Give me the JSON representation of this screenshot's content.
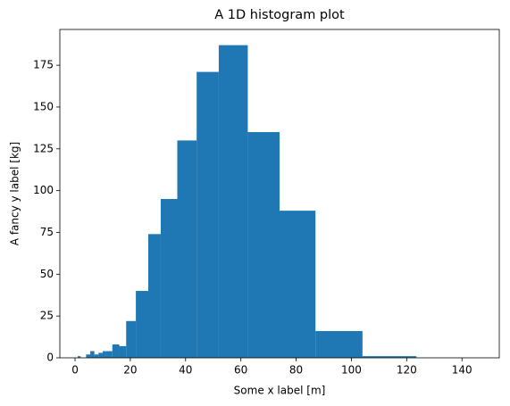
{
  "chart_data": {
    "type": "histogram",
    "title": "A 1D histogram plot",
    "x_label": "Some x label [m]",
    "y_label": "A fancy y label [kg]",
    "bins": [
      1,
      2,
      4,
      5.5,
      7,
      8.5,
      10,
      11,
      13.5,
      16,
      18.5,
      22,
      26.5,
      31,
      37,
      44,
      52,
      62.5,
      74,
      87,
      104,
      123.5,
      148
    ],
    "values": [
      1,
      0,
      2,
      4,
      2,
      3,
      4,
      4,
      8,
      7,
      22,
      40,
      74,
      95,
      130,
      171,
      187,
      135,
      88,
      16,
      1,
      0
    ],
    "color": "#1f77b4",
    "xlim": [
      -5.5,
      153.5
    ],
    "xticks": [
      0,
      20,
      40,
      60,
      80,
      100,
      120,
      140
    ],
    "ylim": [
      0,
      196.4
    ],
    "yticks": [
      0,
      25,
      50,
      75,
      100,
      125,
      150,
      175
    ]
  }
}
